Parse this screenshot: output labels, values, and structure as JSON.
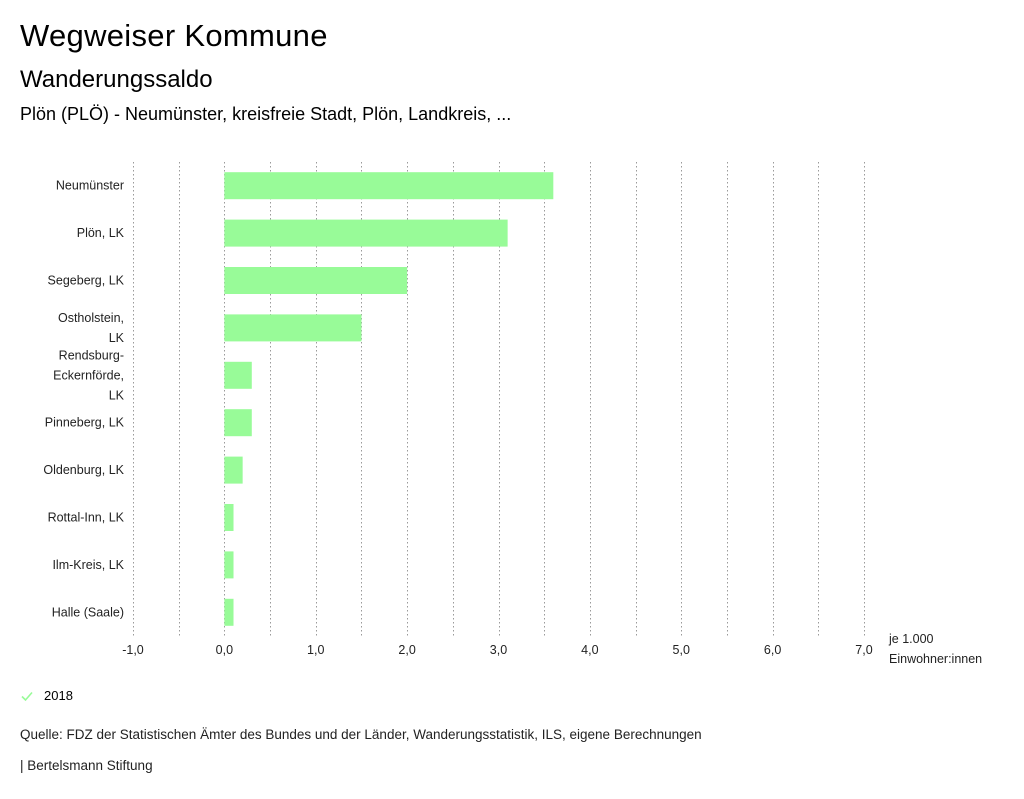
{
  "header": {
    "title": "Wegweiser Kommune",
    "subtitle": "Wanderungssaldo",
    "region": "Plön (PLÖ) - Neumünster, kreisfreie Stadt, Plön, Landkreis, ..."
  },
  "chart_data": {
    "type": "bar",
    "orientation": "horizontal",
    "categories": [
      [
        "Neumünster"
      ],
      [
        "Plön, LK"
      ],
      [
        "Segeberg, LK"
      ],
      [
        "Ostholstein,",
        "LK"
      ],
      [
        "Rendsburg-",
        "Eckernförde,",
        "LK"
      ],
      [
        "Pinneberg, LK"
      ],
      [
        "Oldenburg, LK"
      ],
      [
        "Rottal-Inn, LK"
      ],
      [
        "Ilm-Kreis, LK"
      ],
      [
        "Halle (Saale)"
      ]
    ],
    "series": [
      {
        "name": "2018",
        "values": [
          3.6,
          3.1,
          2.0,
          1.5,
          0.3,
          0.3,
          0.2,
          0.1,
          0.1,
          0.1
        ]
      }
    ],
    "xlim": [
      -1.0,
      7.0
    ],
    "xticks": [
      -1.0,
      0.0,
      1.0,
      2.0,
      3.0,
      4.0,
      5.0,
      6.0,
      7.0
    ],
    "xtick_labels": [
      "-1,0",
      "0,0",
      "1,0",
      "2,0",
      "3,0",
      "4,0",
      "5,0",
      "6,0",
      "7,0"
    ],
    "xlabel": [
      "je 1.000",
      "Einwohner:innen"
    ],
    "grid": "dotted-vertical",
    "bar_color": "#98fb98"
  },
  "legend": {
    "label": "2018",
    "color": "#98fb98"
  },
  "footer": {
    "source": "Quelle: FDZ der Statistischen Ämter des Bundes und der Länder, Wanderungsstatistik, ILS, eigene Berechnungen",
    "brand": "| Bertelsmann Stiftung"
  }
}
